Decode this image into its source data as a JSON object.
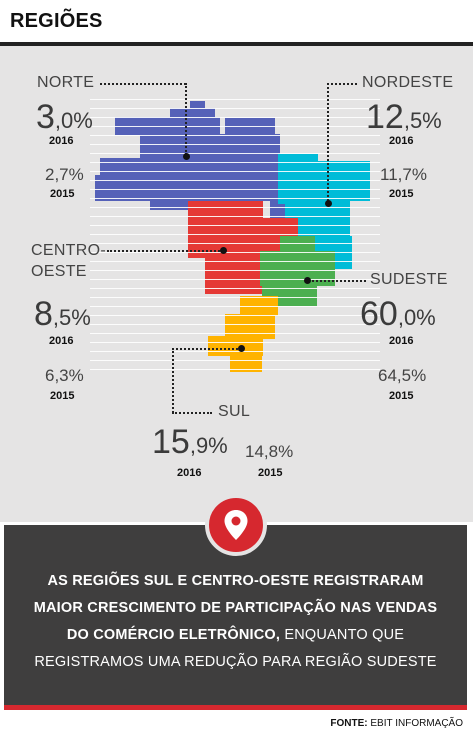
{
  "header": {
    "title": "REGIÕES"
  },
  "regions": {
    "norte": {
      "name": "NORTE",
      "value_2016_int": "3",
      "value_2016_dec": ",0%",
      "year_2016": "2016",
      "value_2015": "2,7%",
      "year_2015": "2015",
      "color": "#5561b8"
    },
    "nordeste": {
      "name": "NORDESTE",
      "value_2016_int": "12",
      "value_2016_dec": ",5%",
      "year_2016": "2016",
      "value_2015": "11,7%",
      "year_2015": "2015",
      "color": "#00bcd8"
    },
    "centro_oeste": {
      "name_line1": "CENTRO-",
      "name_line2": "OESTE",
      "value_2016_int": "8",
      "value_2016_dec": ",5%",
      "year_2016": "2016",
      "value_2015": "6,3%",
      "year_2015": "2015",
      "color": "#e53935"
    },
    "sudeste": {
      "name": "SUDESTE",
      "value_2016_int": "60",
      "value_2016_dec": ",0%",
      "year_2016": "2016",
      "value_2015": "64,5%",
      "year_2015": "2015",
      "color": "#4caf50"
    },
    "sul": {
      "name": "SUL",
      "value_2016_int": "15",
      "value_2016_dec": ",9%",
      "year_2016": "2016",
      "value_2015": "14,8%",
      "year_2015": "2015",
      "color": "#ffb300"
    }
  },
  "footer": {
    "line1": "AS REGIÕES SUL E CENTRO-OESTE REGISTRARAM",
    "line2": "MAIOR CRESCIMENTO DE PARTICIPAÇÃO NAS VENDAS",
    "line3_bold": "DO COMÉRCIO ELETRÔNICO,",
    "line3_rest": " ENQUANTO QUE",
    "line4": "REGISTRAMOS UMA REDUÇÃO PARA REGIÃO SUDESTE",
    "icon": "map-pin-icon"
  },
  "source": {
    "label": "FONTE:",
    "value": " EBIT INFORMAÇÃO"
  }
}
